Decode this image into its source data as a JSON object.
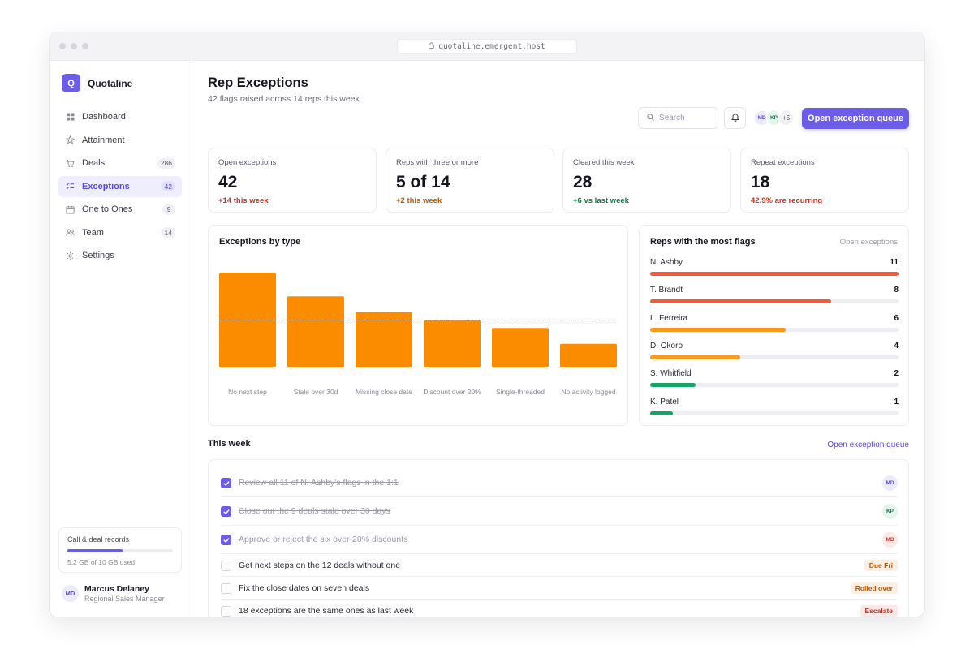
{
  "browser": {
    "url": "quotaline.emergent.host"
  },
  "app": {
    "logo_letter": "Q",
    "name": "Quotaline"
  },
  "sidebar": {
    "items": [
      {
        "label": "Dashboard",
        "badge": "",
        "icon": "grid-icon",
        "active": false
      },
      {
        "label": "Attainment",
        "badge": "",
        "icon": "star-icon",
        "active": false
      },
      {
        "label": "Deals",
        "badge": "286",
        "icon": "cart-icon",
        "active": false
      },
      {
        "label": "Exceptions",
        "badge": "42",
        "icon": "checklist-icon",
        "active": true
      },
      {
        "label": "One to Ones",
        "badge": "9",
        "icon": "calendar-icon",
        "active": false
      },
      {
        "label": "Team",
        "badge": "14",
        "icon": "users-icon",
        "active": false
      },
      {
        "label": "Settings",
        "badge": "",
        "icon": "gear-icon",
        "active": false
      }
    ],
    "storage": {
      "title": "Call & deal records",
      "usage": "5.2 GB of 10 GB used",
      "fraction": 0.52
    },
    "user": {
      "initials": "MD",
      "name": "Marcus Delaney",
      "role": "Regional Sales Manager"
    }
  },
  "header": {
    "title": "Rep Exceptions",
    "subtitle": "42 flags raised across 14 reps this week",
    "search_placeholder": "Search",
    "avatars": [
      "MD",
      "KP"
    ],
    "avatars_more": "+5",
    "primary_button": "Open exception queue"
  },
  "stats": [
    {
      "label": "Open exceptions",
      "value": "42",
      "delta": "+14 this week",
      "tone": "bad"
    },
    {
      "label": "Reps with three or more",
      "value": "5 of 14",
      "delta": "+2 this week",
      "tone": "warn"
    },
    {
      "label": "Cleared this week",
      "value": "28",
      "delta": "+6 vs last week",
      "tone": "good"
    },
    {
      "label": "Repeat exceptions",
      "value": "18",
      "delta": "42.9% are recurring",
      "tone": "bad"
    }
  ],
  "chart_data": {
    "type": "bar",
    "title": "Exceptions by type",
    "categories": [
      "No next step",
      "Stale over 30d",
      "Missing close date",
      "Discount over 20%",
      "Single-threaded",
      "No activity logged"
    ],
    "values": [
      12,
      9,
      7,
      6,
      5,
      3
    ],
    "reference_line": 6,
    "ylim": [
      0,
      12
    ],
    "bar_color": "#fb8c00",
    "grid": false
  },
  "reps": {
    "title": "Reps with the most flags",
    "caption": "Open exceptions",
    "max": 11,
    "items": [
      {
        "name": "N. Ashby",
        "count": 11,
        "color": "#f15a3c"
      },
      {
        "name": "T. Brandt",
        "count": 8,
        "color": "#f15a3c"
      },
      {
        "name": "L. Ferreira",
        "count": 6,
        "color": "#f79a1e"
      },
      {
        "name": "D. Okoro",
        "count": 4,
        "color": "#f79a1e"
      },
      {
        "name": "S. Whitfield",
        "count": 2,
        "color": "#16a36a"
      },
      {
        "name": "K. Patel",
        "count": 1,
        "color": "#16a36a"
      }
    ]
  },
  "week": {
    "title": "This week",
    "link": "Open exception queue",
    "tasks": [
      {
        "text": "Review all 11 of N. Ashby's flags in the 1:1",
        "done": true,
        "assignee": "MD",
        "tag": ""
      },
      {
        "text": "Close out the 9 deals stale over 30 days",
        "done": true,
        "assignee": "KP",
        "tag": ""
      },
      {
        "text": "Approve or reject the six over-20% discounts",
        "done": true,
        "assignee": "MD",
        "tag": ""
      },
      {
        "text": "Get next steps on the 12 deals without one",
        "done": false,
        "assignee": "",
        "tag": "Due Fri"
      },
      {
        "text": "Fix the close dates on seven deals",
        "done": false,
        "assignee": "",
        "tag": "Rolled over"
      },
      {
        "text": "18 exceptions are the same ones as last week",
        "done": false,
        "assignee": "",
        "tag": "Escalate"
      }
    ]
  },
  "colors": {
    "accent": "#6c5ce7",
    "bad": "#c0392b",
    "warn": "#c05a00",
    "good": "#137a4b"
  }
}
